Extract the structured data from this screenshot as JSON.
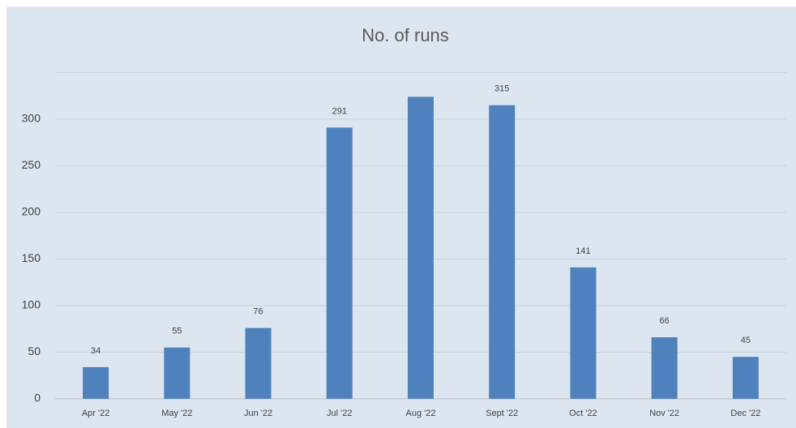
{
  "chart_data": {
    "type": "bar",
    "title": "No. of runs",
    "categories": [
      "Apr '22",
      "May '22",
      "Jun '22",
      "Jul '22",
      "Aug '22",
      "Sept '22",
      "Oct '22",
      "Nov '22",
      "Dec '22"
    ],
    "values": [
      34,
      55,
      76,
      291,
      324,
      315,
      141,
      66,
      45
    ],
    "value_labels": [
      "34",
      "55",
      "76",
      "291",
      null,
      "315",
      "141",
      "66",
      "45"
    ],
    "color": "#4f81bd",
    "ylim": [
      0,
      350
    ],
    "yticks": [
      0,
      50,
      100,
      150,
      200,
      250,
      300
    ],
    "grid": true
  }
}
